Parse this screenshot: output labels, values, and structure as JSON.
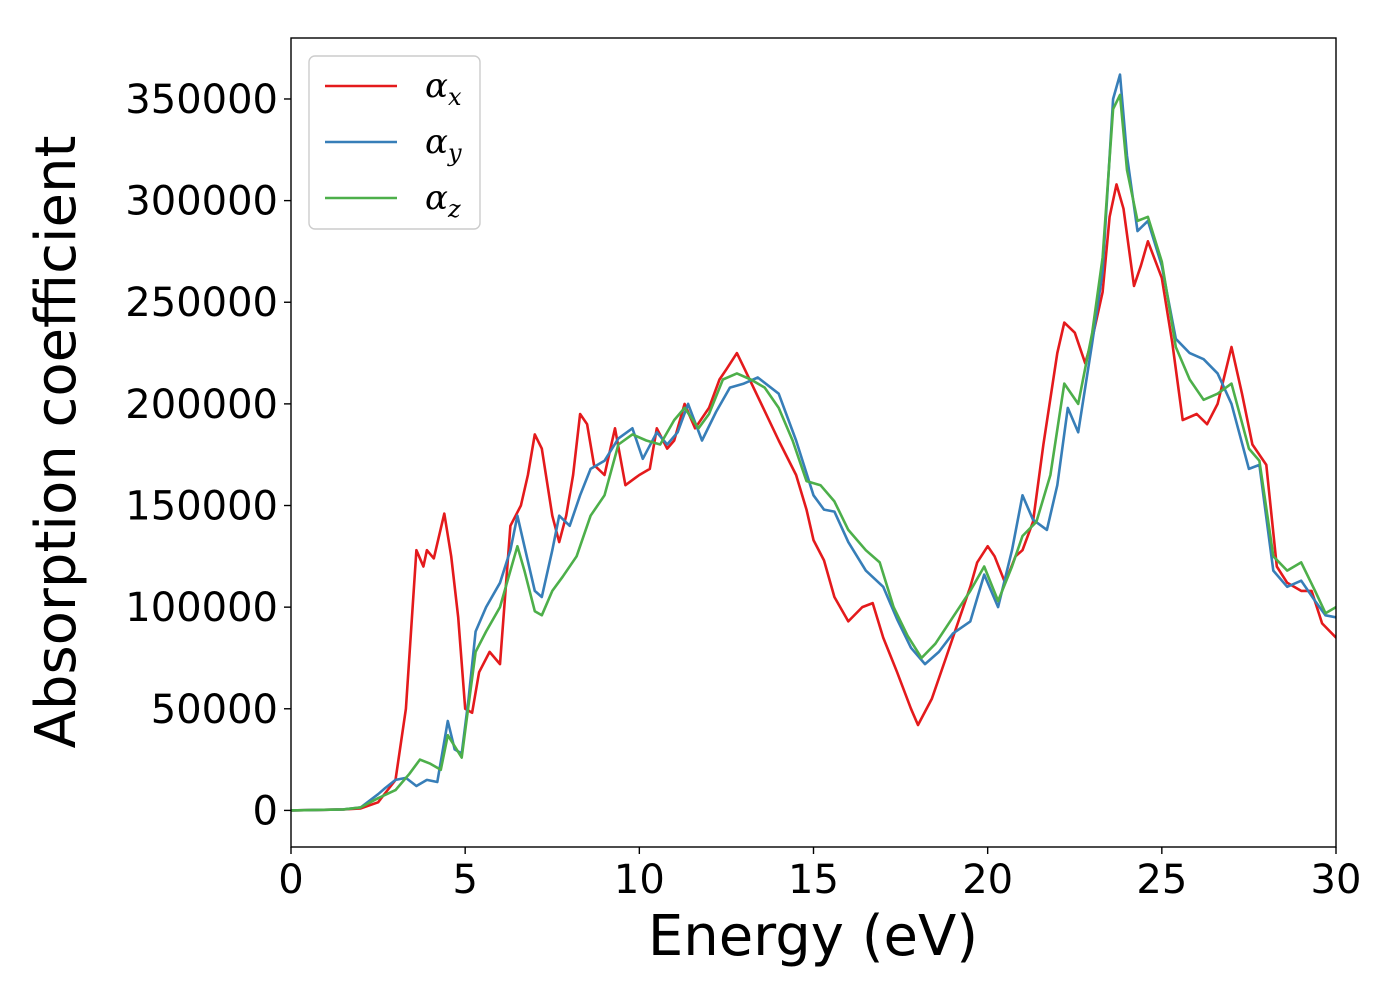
{
  "chart_data": {
    "type": "line",
    "title": "",
    "xlabel": "Energy (eV)",
    "ylabel": "Absorption coefficient",
    "xlim": [
      0,
      30
    ],
    "ylim": [
      -18000,
      380000
    ],
    "xticks": [
      0,
      5,
      10,
      15,
      20,
      25,
      30
    ],
    "xtick_labels": [
      "0",
      "5",
      "10",
      "15",
      "20",
      "25",
      "30"
    ],
    "yticks": [
      0,
      50000,
      100000,
      150000,
      200000,
      250000,
      300000,
      350000
    ],
    "ytick_labels": [
      "0",
      "50000",
      "100000",
      "150000",
      "200000",
      "250000",
      "300000",
      "350000"
    ],
    "grid": false,
    "legend_position": "top-left",
    "series": [
      {
        "name": "αx",
        "name_base": "α",
        "name_sub": "x",
        "color": "#e41a1c",
        "points": [
          [
            0,
            0
          ],
          [
            1.5,
            500
          ],
          [
            2,
            1000
          ],
          [
            2.5,
            4000
          ],
          [
            3,
            15000
          ],
          [
            3.3,
            50000
          ],
          [
            3.6,
            128000
          ],
          [
            3.8,
            120000
          ],
          [
            3.9,
            128000
          ],
          [
            4.1,
            124000
          ],
          [
            4.4,
            146000
          ],
          [
            4.6,
            125000
          ],
          [
            4.8,
            95000
          ],
          [
            5,
            50000
          ],
          [
            5.2,
            48000
          ],
          [
            5.4,
            68000
          ],
          [
            5.7,
            78000
          ],
          [
            6,
            72000
          ],
          [
            6.3,
            140000
          ],
          [
            6.6,
            150000
          ],
          [
            6.8,
            165000
          ],
          [
            7,
            185000
          ],
          [
            7.2,
            178000
          ],
          [
            7.5,
            145000
          ],
          [
            7.7,
            132000
          ],
          [
            7.9,
            145000
          ],
          [
            8.1,
            165000
          ],
          [
            8.3,
            195000
          ],
          [
            8.5,
            190000
          ],
          [
            8.7,
            170000
          ],
          [
            9,
            165000
          ],
          [
            9.3,
            188000
          ],
          [
            9.6,
            160000
          ],
          [
            10,
            165000
          ],
          [
            10.3,
            168000
          ],
          [
            10.5,
            188000
          ],
          [
            10.8,
            178000
          ],
          [
            11,
            182000
          ],
          [
            11.3,
            200000
          ],
          [
            11.6,
            188000
          ],
          [
            12,
            198000
          ],
          [
            12.3,
            212000
          ],
          [
            12.5,
            217000
          ],
          [
            12.8,
            225000
          ],
          [
            13,
            218000
          ],
          [
            13.5,
            200000
          ],
          [
            14,
            182000
          ],
          [
            14.5,
            165000
          ],
          [
            14.8,
            148000
          ],
          [
            15,
            133000
          ],
          [
            15.3,
            123000
          ],
          [
            15.6,
            105000
          ],
          [
            16,
            93000
          ],
          [
            16.4,
            100000
          ],
          [
            16.7,
            102000
          ],
          [
            17,
            85000
          ],
          [
            17.4,
            68000
          ],
          [
            17.8,
            50000
          ],
          [
            18,
            42000
          ],
          [
            18.4,
            55000
          ],
          [
            18.8,
            75000
          ],
          [
            19.2,
            95000
          ],
          [
            19.5,
            110000
          ],
          [
            19.7,
            122000
          ],
          [
            20,
            130000
          ],
          [
            20.2,
            125000
          ],
          [
            20.5,
            112000
          ],
          [
            20.8,
            125000
          ],
          [
            21,
            128000
          ],
          [
            21.3,
            142000
          ],
          [
            21.6,
            180000
          ],
          [
            22,
            225000
          ],
          [
            22.2,
            240000
          ],
          [
            22.5,
            235000
          ],
          [
            22.8,
            220000
          ],
          [
            23,
            232000
          ],
          [
            23.3,
            255000
          ],
          [
            23.5,
            292000
          ],
          [
            23.7,
            308000
          ],
          [
            23.9,
            296000
          ],
          [
            24.2,
            258000
          ],
          [
            24.4,
            268000
          ],
          [
            24.6,
            280000
          ],
          [
            25,
            262000
          ],
          [
            25.3,
            230000
          ],
          [
            25.6,
            192000
          ],
          [
            26,
            195000
          ],
          [
            26.3,
            190000
          ],
          [
            26.6,
            200000
          ],
          [
            27,
            228000
          ],
          [
            27.3,
            205000
          ],
          [
            27.6,
            180000
          ],
          [
            28,
            170000
          ],
          [
            28.3,
            120000
          ],
          [
            28.6,
            112000
          ],
          [
            29,
            108000
          ],
          [
            29.3,
            108000
          ],
          [
            29.6,
            92000
          ],
          [
            30,
            85000
          ]
        ]
      },
      {
        "name": "αy",
        "name_base": "α",
        "name_sub": "y",
        "color": "#377eb8",
        "points": [
          [
            0,
            0
          ],
          [
            1.5,
            500
          ],
          [
            2,
            1500
          ],
          [
            2.5,
            8000
          ],
          [
            2.7,
            11000
          ],
          [
            3,
            15000
          ],
          [
            3.3,
            16000
          ],
          [
            3.6,
            12000
          ],
          [
            3.9,
            15000
          ],
          [
            4.2,
            14000
          ],
          [
            4.5,
            44000
          ],
          [
            4.7,
            30000
          ],
          [
            4.9,
            28000
          ],
          [
            5.1,
            55000
          ],
          [
            5.3,
            88000
          ],
          [
            5.6,
            100000
          ],
          [
            6,
            112000
          ],
          [
            6.3,
            128000
          ],
          [
            6.5,
            145000
          ],
          [
            6.7,
            130000
          ],
          [
            7,
            108000
          ],
          [
            7.2,
            105000
          ],
          [
            7.5,
            128000
          ],
          [
            7.7,
            145000
          ],
          [
            8,
            140000
          ],
          [
            8.3,
            155000
          ],
          [
            8.6,
            168000
          ],
          [
            9,
            172000
          ],
          [
            9.4,
            183000
          ],
          [
            9.8,
            188000
          ],
          [
            10.1,
            173000
          ],
          [
            10.5,
            186000
          ],
          [
            10.8,
            180000
          ],
          [
            11.1,
            186000
          ],
          [
            11.4,
            200000
          ],
          [
            11.8,
            182000
          ],
          [
            12.2,
            196000
          ],
          [
            12.6,
            208000
          ],
          [
            13,
            210000
          ],
          [
            13.4,
            213000
          ],
          [
            14,
            205000
          ],
          [
            14.5,
            182000
          ],
          [
            15,
            155000
          ],
          [
            15.3,
            148000
          ],
          [
            15.6,
            147000
          ],
          [
            16,
            132000
          ],
          [
            16.5,
            118000
          ],
          [
            17,
            110000
          ],
          [
            17.4,
            94000
          ],
          [
            17.8,
            80000
          ],
          [
            18.2,
            72000
          ],
          [
            18.6,
            78000
          ],
          [
            19,
            87000
          ],
          [
            19.5,
            93000
          ],
          [
            19.9,
            116000
          ],
          [
            20.3,
            100000
          ],
          [
            20.7,
            128000
          ],
          [
            21,
            155000
          ],
          [
            21.3,
            143000
          ],
          [
            21.7,
            138000
          ],
          [
            22,
            160000
          ],
          [
            22.3,
            198000
          ],
          [
            22.6,
            186000
          ],
          [
            23,
            230000
          ],
          [
            23.3,
            265000
          ],
          [
            23.6,
            350000
          ],
          [
            23.8,
            362000
          ],
          [
            24,
            322000
          ],
          [
            24.3,
            285000
          ],
          [
            24.6,
            290000
          ],
          [
            25,
            268000
          ],
          [
            25.4,
            232000
          ],
          [
            25.8,
            225000
          ],
          [
            26.2,
            222000
          ],
          [
            26.6,
            215000
          ],
          [
            27,
            200000
          ],
          [
            27.5,
            168000
          ],
          [
            27.8,
            170000
          ],
          [
            28.2,
            118000
          ],
          [
            28.6,
            110000
          ],
          [
            29,
            113000
          ],
          [
            29.4,
            103000
          ],
          [
            29.7,
            96000
          ],
          [
            30,
            95000
          ]
        ]
      },
      {
        "name": "αz",
        "name_base": "α",
        "name_sub": "z",
        "color": "#4daf4a",
        "points": [
          [
            0,
            0
          ],
          [
            1.5,
            500
          ],
          [
            2,
            1500
          ],
          [
            2.5,
            6000
          ],
          [
            3,
            10000
          ],
          [
            3.4,
            18000
          ],
          [
            3.7,
            25000
          ],
          [
            4,
            23000
          ],
          [
            4.3,
            20000
          ],
          [
            4.5,
            37000
          ],
          [
            4.9,
            26000
          ],
          [
            5.1,
            52000
          ],
          [
            5.3,
            78000
          ],
          [
            5.6,
            88000
          ],
          [
            6,
            100000
          ],
          [
            6.3,
            118000
          ],
          [
            6.5,
            130000
          ],
          [
            6.7,
            118000
          ],
          [
            7,
            98000
          ],
          [
            7.2,
            96000
          ],
          [
            7.5,
            108000
          ],
          [
            7.8,
            115000
          ],
          [
            8.2,
            125000
          ],
          [
            8.6,
            145000
          ],
          [
            9,
            155000
          ],
          [
            9.4,
            180000
          ],
          [
            9.8,
            185000
          ],
          [
            10.2,
            182000
          ],
          [
            10.6,
            180000
          ],
          [
            11,
            192000
          ],
          [
            11.3,
            198000
          ],
          [
            11.7,
            188000
          ],
          [
            12,
            195000
          ],
          [
            12.4,
            212000
          ],
          [
            12.8,
            215000
          ],
          [
            13.2,
            212000
          ],
          [
            13.6,
            208000
          ],
          [
            14,
            198000
          ],
          [
            14.4,
            182000
          ],
          [
            14.8,
            162000
          ],
          [
            15.2,
            160000
          ],
          [
            15.6,
            152000
          ],
          [
            16,
            138000
          ],
          [
            16.5,
            128000
          ],
          [
            16.9,
            122000
          ],
          [
            17.3,
            100000
          ],
          [
            17.7,
            86000
          ],
          [
            18.1,
            75000
          ],
          [
            18.5,
            82000
          ],
          [
            19,
            95000
          ],
          [
            19.5,
            108000
          ],
          [
            19.9,
            120000
          ],
          [
            20.3,
            103000
          ],
          [
            20.7,
            120000
          ],
          [
            21,
            135000
          ],
          [
            21.4,
            142000
          ],
          [
            21.8,
            165000
          ],
          [
            22.2,
            210000
          ],
          [
            22.6,
            200000
          ],
          [
            23,
            235000
          ],
          [
            23.3,
            272000
          ],
          [
            23.6,
            345000
          ],
          [
            23.8,
            352000
          ],
          [
            24,
            315000
          ],
          [
            24.3,
            290000
          ],
          [
            24.6,
            292000
          ],
          [
            25,
            270000
          ],
          [
            25.4,
            228000
          ],
          [
            25.8,
            212000
          ],
          [
            26.2,
            202000
          ],
          [
            26.6,
            205000
          ],
          [
            27,
            210000
          ],
          [
            27.5,
            178000
          ],
          [
            27.8,
            172000
          ],
          [
            28.2,
            125000
          ],
          [
            28.6,
            118000
          ],
          [
            29,
            122000
          ],
          [
            29.4,
            108000
          ],
          [
            29.7,
            97000
          ],
          [
            30,
            100000
          ]
        ]
      }
    ]
  }
}
